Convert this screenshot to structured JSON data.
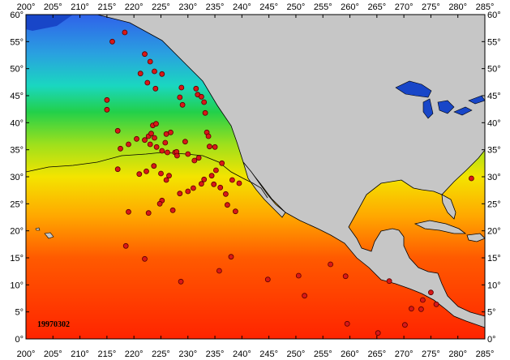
{
  "map": {
    "date_stamp": "19970302",
    "lon_range": [
      200,
      285
    ],
    "lat_range": [
      0,
      60
    ],
    "lon_ticks": [
      "200°",
      "205°",
      "210°",
      "215°",
      "220°",
      "225°",
      "230°",
      "235°",
      "240°",
      "245°",
      "250°",
      "255°",
      "260°",
      "265°",
      "270°",
      "275°",
      "280°",
      "285°"
    ],
    "lat_ticks": [
      "0°",
      "5°",
      "10°",
      "15°",
      "20°",
      "25°",
      "30°",
      "35°",
      "40°",
      "45°",
      "50°",
      "55°",
      "60°"
    ],
    "colors": {
      "land": "#c6c6c6",
      "lakes": "#1846c8",
      "frame": "#000000",
      "marker_fill": "#d81818",
      "marker_edge": "#5a0000",
      "sst_cold": "#2f62ea",
      "sst_mid": "#22d04a",
      "sst_warm": "#f4e400",
      "sst_hot": "#ff2400"
    },
    "markers": [
      [
        216.0,
        55.0
      ],
      [
        218.3,
        56.7
      ],
      [
        215.0,
        44.2
      ],
      [
        215.0,
        42.4
      ],
      [
        217.0,
        38.5
      ],
      [
        217.5,
        35.2
      ],
      [
        219.0,
        36.0
      ],
      [
        220.5,
        37.0
      ],
      [
        222.0,
        36.8
      ],
      [
        222.7,
        37.5
      ],
      [
        223.0,
        36.0
      ],
      [
        223.2,
        38.0
      ],
      [
        223.5,
        39.5
      ],
      [
        224.1,
        39.8
      ],
      [
        223.8,
        37.2
      ],
      [
        224.2,
        35.5
      ],
      [
        225.2,
        34.8
      ],
      [
        225.8,
        36.3
      ],
      [
        226.0,
        37.9
      ],
      [
        226.8,
        38.2
      ],
      [
        226.2,
        34.5
      ],
      [
        227.6,
        34.5
      ],
      [
        227.9,
        34.6
      ],
      [
        228.0,
        33.9
      ],
      [
        229.5,
        36.5
      ],
      [
        230.0,
        34.2
      ],
      [
        231.2,
        33.0
      ],
      [
        232.0,
        33.5
      ],
      [
        222.0,
        52.7
      ],
      [
        223.0,
        51.3
      ],
      [
        223.8,
        49.5
      ],
      [
        225.2,
        49.0
      ],
      [
        221.2,
        49.1
      ],
      [
        222.5,
        47.4
      ],
      [
        224.0,
        46.3
      ],
      [
        228.8,
        46.5
      ],
      [
        228.5,
        44.7
      ],
      [
        229.0,
        43.3
      ],
      [
        231.5,
        46.3
      ],
      [
        231.8,
        45.2
      ],
      [
        232.5,
        44.8
      ],
      [
        233.0,
        43.8
      ],
      [
        233.2,
        41.8
      ],
      [
        233.5,
        38.2
      ],
      [
        233.8,
        37.5
      ],
      [
        234.0,
        35.6
      ],
      [
        235.0,
        35.5
      ],
      [
        236.3,
        32.5
      ],
      [
        234.4,
        30.2
      ],
      [
        235.2,
        31.2
      ],
      [
        234.8,
        28.6
      ],
      [
        236.0,
        28.0
      ],
      [
        237.0,
        26.8
      ],
      [
        237.3,
        24.8
      ],
      [
        238.8,
        23.6
      ],
      [
        238.2,
        29.4
      ],
      [
        239.5,
        28.8
      ],
      [
        231.0,
        27.9
      ],
      [
        232.5,
        28.7
      ],
      [
        233.0,
        29.5
      ],
      [
        230.0,
        27.3
      ],
      [
        228.5,
        26.9
      ],
      [
        226.5,
        30.2
      ],
      [
        226.0,
        29.4
      ],
      [
        225.0,
        30.6
      ],
      [
        223.7,
        32.0
      ],
      [
        222.3,
        31.0
      ],
      [
        221.0,
        30.5
      ],
      [
        217.0,
        31.4
      ],
      [
        219.0,
        23.5
      ],
      [
        222.7,
        23.3
      ],
      [
        225.2,
        25.6
      ],
      [
        224.8,
        25.0
      ],
      [
        227.2,
        23.8
      ],
      [
        218.5,
        17.2
      ],
      [
        222.0,
        14.8
      ],
      [
        228.7,
        10.6
      ],
      [
        235.8,
        12.6
      ],
      [
        238.0,
        15.2
      ],
      [
        244.8,
        11.0
      ],
      [
        250.5,
        11.7
      ],
      [
        251.6,
        8.0
      ],
      [
        256.4,
        13.8
      ],
      [
        259.2,
        11.6
      ],
      [
        259.5,
        2.8
      ],
      [
        265.2,
        1.1
      ],
      [
        267.3,
        10.7
      ],
      [
        270.2,
        2.6
      ],
      [
        271.4,
        5.6
      ],
      [
        273.2,
        5.5
      ],
      [
        273.5,
        7.2
      ],
      [
        275.0,
        8.6
      ],
      [
        276.0,
        6.4
      ],
      [
        282.5,
        29.7
      ]
    ]
  }
}
